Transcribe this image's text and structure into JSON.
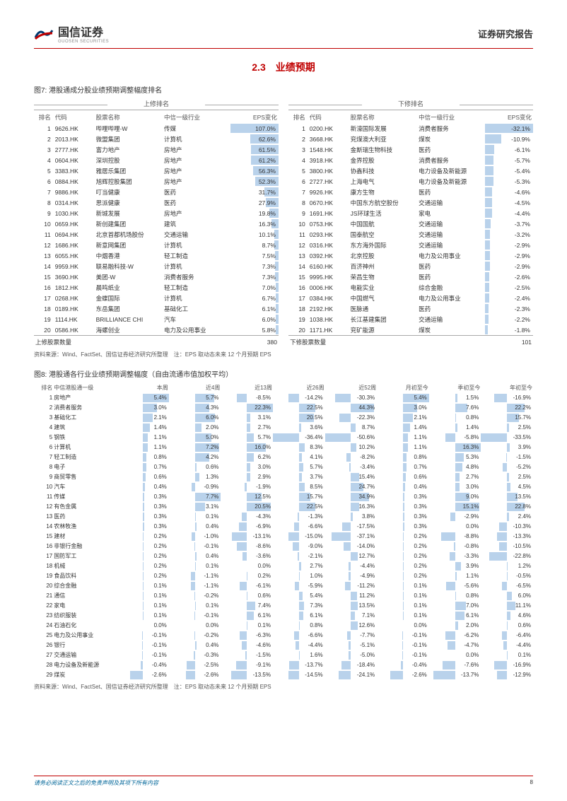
{
  "header": {
    "brand_cn": "国信证券",
    "brand_en": "GUOSEN SECURITIES",
    "report_type": "证券研究报告"
  },
  "section": {
    "number": "2.3",
    "title": "业绩预期"
  },
  "figure7": {
    "caption": "图7: 港股通成分股业绩预期调整幅度排名",
    "up_label": "上修排名",
    "down_label": "下修排名",
    "columns": [
      "排名",
      "代码",
      "股票名称",
      "中信一级行业",
      "EPS变化"
    ],
    "up_rows": [
      {
        "rank": 1,
        "code": "9626.HK",
        "name": "哔哩哔哩-W",
        "ind": "传媒",
        "eps": 107.0
      },
      {
        "rank": 2,
        "code": "2013.HK",
        "name": "微盟集团",
        "ind": "计算机",
        "eps": 62.6
      },
      {
        "rank": 3,
        "code": "2777.HK",
        "name": "富力地产",
        "ind": "房地产",
        "eps": 61.5
      },
      {
        "rank": 4,
        "code": "0604.HK",
        "name": "深圳控股",
        "ind": "房地产",
        "eps": 61.2
      },
      {
        "rank": 5,
        "code": "3383.HK",
        "name": "雅居乐集团",
        "ind": "房地产",
        "eps": 56.3
      },
      {
        "rank": 6,
        "code": "0884.HK",
        "name": "旭辉控股集团",
        "ind": "房地产",
        "eps": 52.3
      },
      {
        "rank": 7,
        "code": "9886.HK",
        "name": "叮当健康",
        "ind": "医药",
        "eps": 31.7
      },
      {
        "rank": 8,
        "code": "0314.HK",
        "name": "思派健康",
        "ind": "医药",
        "eps": 27.9
      },
      {
        "rank": 9,
        "code": "1030.HK",
        "name": "新城发展",
        "ind": "房地产",
        "eps": 19.8
      },
      {
        "rank": 10,
        "code": "0659.HK",
        "name": "新创建集团",
        "ind": "建筑",
        "eps": 16.3
      },
      {
        "rank": 11,
        "code": "0694.HK",
        "name": "北京首都机场股份",
        "ind": "交通运输",
        "eps": 10.1
      },
      {
        "rank": 12,
        "code": "1686.HK",
        "name": "新意网集团",
        "ind": "计算机",
        "eps": 8.7
      },
      {
        "rank": 13,
        "code": "6055.HK",
        "name": "中烟香港",
        "ind": "轻工制造",
        "eps": 7.5
      },
      {
        "rank": 14,
        "code": "9959.HK",
        "name": "联易融科技-W",
        "ind": "计算机",
        "eps": 7.3
      },
      {
        "rank": 15,
        "code": "3690.HK",
        "name": "美团-W",
        "ind": "消费者服务",
        "eps": 7.3
      },
      {
        "rank": 16,
        "code": "1812.HK",
        "name": "晨鸣纸业",
        "ind": "轻工制造",
        "eps": 7.0
      },
      {
        "rank": 17,
        "code": "0268.HK",
        "name": "金蝶国际",
        "ind": "计算机",
        "eps": 6.7
      },
      {
        "rank": 18,
        "code": "0189.HK",
        "name": "东岳集团",
        "ind": "基础化工",
        "eps": 6.1
      },
      {
        "rank": 19,
        "code": "1114.HK",
        "name": "BRILLIANCE CHI",
        "ind": "汽车",
        "eps": 6.0
      },
      {
        "rank": 20,
        "code": "0586.HK",
        "name": "海螺创业",
        "ind": "电力及公用事业",
        "eps": 5.8
      }
    ],
    "up_max": 107.0,
    "up_footer_label": "上修股票数量",
    "up_footer_value": "380",
    "down_rows": [
      {
        "rank": 1,
        "code": "0200.HK",
        "name": "新濠国际发展",
        "ind": "消费者服务",
        "eps": -32.1
      },
      {
        "rank": 2,
        "code": "3668.HK",
        "name": "兖煤澳大利亚",
        "ind": "煤炭",
        "eps": -10.9
      },
      {
        "rank": 3,
        "code": "1548.HK",
        "name": "金斯瑞生物科技",
        "ind": "医药",
        "eps": -6.1
      },
      {
        "rank": 4,
        "code": "3918.HK",
        "name": "金界控股",
        "ind": "消费者服务",
        "eps": -5.7
      },
      {
        "rank": 5,
        "code": "3800.HK",
        "name": "协鑫科技",
        "ind": "电力设备及新能源",
        "eps": -5.4
      },
      {
        "rank": 6,
        "code": "2727.HK",
        "name": "上海电气",
        "ind": "电力设备及新能源",
        "eps": -5.3
      },
      {
        "rank": 7,
        "code": "9926.HK",
        "name": "康方生物",
        "ind": "医药",
        "eps": -4.6
      },
      {
        "rank": 8,
        "code": "0670.HK",
        "name": "中国东方航空股份",
        "ind": "交通运输",
        "eps": -4.5
      },
      {
        "rank": 9,
        "code": "1691.HK",
        "name": "JS环球生活",
        "ind": "家电",
        "eps": -4.4
      },
      {
        "rank": 10,
        "code": "0753.HK",
        "name": "中国国航",
        "ind": "交通运输",
        "eps": -3.7
      },
      {
        "rank": 11,
        "code": "0293.HK",
        "name": "国泰航空",
        "ind": "交通运输",
        "eps": -3.2
      },
      {
        "rank": 12,
        "code": "0316.HK",
        "name": "东方海外国际",
        "ind": "交通运输",
        "eps": -2.9
      },
      {
        "rank": 13,
        "code": "0392.HK",
        "name": "北京控股",
        "ind": "电力及公用事业",
        "eps": -2.9
      },
      {
        "rank": 14,
        "code": "6160.HK",
        "name": "百济神州",
        "ind": "医药",
        "eps": -2.9
      },
      {
        "rank": 15,
        "code": "9995.HK",
        "name": "荣昌生物",
        "ind": "医药",
        "eps": -2.6
      },
      {
        "rank": 16,
        "code": "0006.HK",
        "name": "电能实业",
        "ind": "综合金融",
        "eps": -2.5
      },
      {
        "rank": 17,
        "code": "0384.HK",
        "name": "中国燃气",
        "ind": "电力及公用事业",
        "eps": -2.4
      },
      {
        "rank": 18,
        "code": "2192.HK",
        "name": "医脉通",
        "ind": "医药",
        "eps": -2.3
      },
      {
        "rank": 19,
        "code": "1038.HK",
        "name": "长江基建集团",
        "ind": "交通运输",
        "eps": -2.2
      },
      {
        "rank": 20,
        "code": "1171.HK",
        "name": "兖矿能源",
        "ind": "煤炭",
        "eps": -1.8
      }
    ],
    "down_max": 32.1,
    "down_footer_label": "下修股票数量",
    "down_footer_value": "101",
    "source": "资料来源：Wind、FactSet、国信证券经济研究所整理　注：EPS 取动态未来 12 个月预期 EPS"
  },
  "figure8": {
    "caption": "图8: 港股通各行业业绩预期调整幅度（自由流通市值加权平均）",
    "columns": [
      "排名",
      "中信港股通一级",
      "本周",
      "近4周",
      "近13周",
      "近26周",
      "近52周",
      "月初至今",
      "季初至今",
      "年初至今"
    ],
    "rows": [
      {
        "r": 1,
        "n": "房地产",
        "v": [
          5.4,
          5.7,
          -8.5,
          -14.2,
          -30.3,
          5.4,
          1.5,
          -16.9
        ]
      },
      {
        "r": 2,
        "n": "消费者服务",
        "v": [
          3.0,
          4.3,
          22.3,
          22.5,
          44.3,
          3.0,
          7.6,
          22.2
        ]
      },
      {
        "r": 3,
        "n": "基础化工",
        "v": [
          2.1,
          6.0,
          3.1,
          20.5,
          -22.3,
          2.1,
          0.8,
          15.7
        ]
      },
      {
        "r": 4,
        "n": "建筑",
        "v": [
          1.4,
          2.0,
          2.7,
          3.6,
          8.7,
          1.4,
          1.4,
          2.5
        ]
      },
      {
        "r": 5,
        "n": "钢铁",
        "v": [
          1.1,
          5.0,
          5.7,
          -36.4,
          -50.6,
          1.1,
          -5.8,
          -33.5
        ]
      },
      {
        "r": 6,
        "n": "计算机",
        "v": [
          1.1,
          7.2,
          16.0,
          8.3,
          10.2,
          1.1,
          16.3,
          3.9
        ]
      },
      {
        "r": 7,
        "n": "轻工制造",
        "v": [
          0.8,
          4.2,
          6.2,
          4.1,
          -8.2,
          0.8,
          5.3,
          -1.5
        ]
      },
      {
        "r": 8,
        "n": "电子",
        "v": [
          0.7,
          0.6,
          3.0,
          5.7,
          -3.4,
          0.7,
          4.8,
          -5.2
        ]
      },
      {
        "r": 9,
        "n": "商贸零售",
        "v": [
          0.6,
          1.3,
          2.9,
          3.7,
          15.4,
          0.6,
          2.7,
          2.5
        ]
      },
      {
        "r": 10,
        "n": "汽车",
        "v": [
          0.4,
          -0.9,
          -1.9,
          8.5,
          24.7,
          0.4,
          3.0,
          4.5
        ]
      },
      {
        "r": 11,
        "n": "传媒",
        "v": [
          0.3,
          7.7,
          12.5,
          15.7,
          34.9,
          0.3,
          9.0,
          13.5
        ]
      },
      {
        "r": 12,
        "n": "有色金属",
        "v": [
          0.3,
          3.1,
          20.5,
          22.5,
          16.3,
          0.3,
          15.1,
          22.8
        ]
      },
      {
        "r": 13,
        "n": "医药",
        "v": [
          0.3,
          0.1,
          -4.3,
          -1.3,
          3.8,
          0.3,
          -2.9,
          2.4
        ]
      },
      {
        "r": 14,
        "n": "农林牧渔",
        "v": [
          0.3,
          0.4,
          -6.9,
          -6.6,
          -17.5,
          0.3,
          0.0,
          -10.3
        ]
      },
      {
        "r": 15,
        "n": "建材",
        "v": [
          0.2,
          -1.0,
          -13.1,
          -15.0,
          -37.1,
          0.2,
          -8.8,
          -13.3
        ]
      },
      {
        "r": 16,
        "n": "非银行金融",
        "v": [
          0.2,
          -0.1,
          -8.6,
          -9.0,
          -14.0,
          0.2,
          -0.8,
          -10.5
        ]
      },
      {
        "r": 17,
        "n": "国防军工",
        "v": [
          0.2,
          0.4,
          -3.6,
          -2.1,
          12.7,
          0.2,
          -3.3,
          -22.8
        ]
      },
      {
        "r": 18,
        "n": "机械",
        "v": [
          0.2,
          0.1,
          0.0,
          2.7,
          -4.4,
          0.2,
          3.9,
          1.2
        ]
      },
      {
        "r": 19,
        "n": "食品饮料",
        "v": [
          0.2,
          -1.1,
          0.2,
          1.0,
          -4.9,
          0.2,
          1.1,
          -0.5
        ]
      },
      {
        "r": 20,
        "n": "综合金融",
        "v": [
          0.1,
          -1.1,
          -6.1,
          -5.9,
          -11.2,
          0.1,
          -5.6,
          -6.5
        ]
      },
      {
        "r": 21,
        "n": "通信",
        "v": [
          0.1,
          -0.2,
          0.6,
          5.4,
          11.2,
          0.1,
          0.8,
          6.0
        ]
      },
      {
        "r": 22,
        "n": "家电",
        "v": [
          0.1,
          0.1,
          7.4,
          7.3,
          13.5,
          0.1,
          7.0,
          11.1
        ]
      },
      {
        "r": 23,
        "n": "纺织服装",
        "v": [
          0.1,
          -0.1,
          6.1,
          6.1,
          7.1,
          0.1,
          6.1,
          4.6
        ]
      },
      {
        "r": 24,
        "n": "石油石化",
        "v": [
          -0.0,
          -0.0,
          0.1,
          0.8,
          12.6,
          -0.0,
          2.0,
          0.6
        ]
      },
      {
        "r": 25,
        "n": "电力及公用事业",
        "v": [
          -0.1,
          -0.2,
          -6.3,
          -6.6,
          -7.7,
          -0.1,
          -6.2,
          -6.4
        ]
      },
      {
        "r": 26,
        "n": "银行",
        "v": [
          -0.1,
          0.4,
          -4.6,
          -4.4,
          -5.1,
          -0.1,
          -4.7,
          -4.4
        ]
      },
      {
        "r": 27,
        "n": "交通运输",
        "v": [
          -0.1,
          -0.3,
          -1.5,
          1.6,
          -5.0,
          -0.1,
          -0.0,
          0.1
        ]
      },
      {
        "r": 28,
        "n": "电力设备及新能源",
        "v": [
          -0.4,
          -2.5,
          -9.1,
          -13.7,
          -18.4,
          -0.4,
          -7.6,
          -16.9
        ]
      },
      {
        "r": 29,
        "n": "煤炭",
        "v": [
          -2.6,
          -2.6,
          -13.5,
          -14.5,
          -24.1,
          -2.6,
          -13.7,
          -12.9
        ]
      }
    ],
    "col_max": [
      5.4,
      7.7,
      22.3,
      36.4,
      50.6,
      5.4,
      16.3,
      33.5
    ],
    "source": "资料来源：Wind、FactSet、国信证券经济研究所整理　注：EPS 取动态未来 12 个月预期 EPS"
  },
  "footer": {
    "disclaimer": "请务必阅读正文之后的免责声明及其项下所有内容",
    "page": "8"
  },
  "colors": {
    "bar_fill": "rgba(100,155,210,0.45)",
    "accent": "#c00000"
  }
}
